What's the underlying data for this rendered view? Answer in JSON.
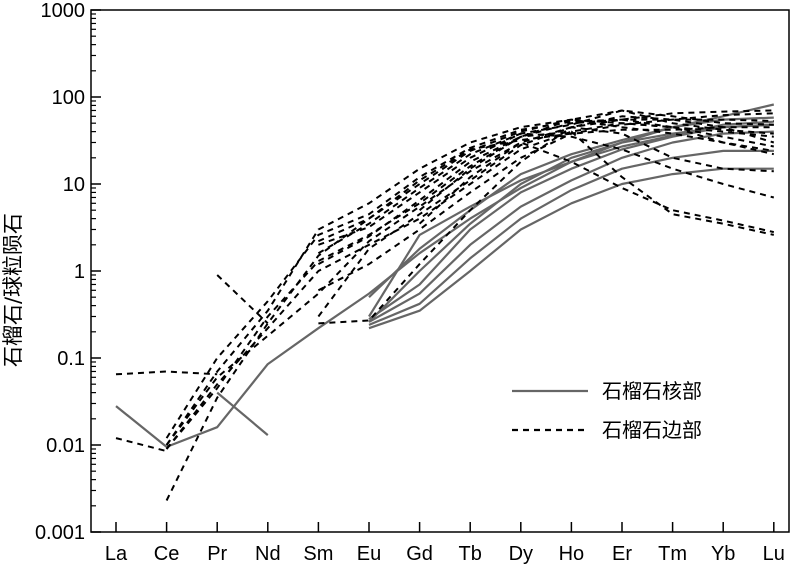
{
  "chart_data": {
    "type": "line",
    "title": "",
    "xlabel": "",
    "ylabel": "石榴石/球粒陨石",
    "categories": [
      "La",
      "Ce",
      "Pr",
      "Nd",
      "Sm",
      "Eu",
      "Gd",
      "Tb",
      "Dy",
      "Ho",
      "Er",
      "Tm",
      "Yb",
      "Lu"
    ],
    "y_scale": "log",
    "ylim": [
      0.001,
      1000
    ],
    "y_ticks": [
      "0.001",
      "0.01",
      "0.1",
      "1",
      "10",
      "100",
      "1000"
    ],
    "grid": false,
    "legend": {
      "placement": "right",
      "items": [
        {
          "label": "石榴石核部",
          "style": "solid",
          "color": "#666666"
        },
        {
          "label": "石榴石边部",
          "style": "dashed",
          "color": "#000000"
        }
      ]
    },
    "series_groups": [
      {
        "legend": "石榴石核部",
        "style": "solid",
        "color": "#666666",
        "lines": [
          [
            0.028,
            0.0095,
            0.016,
            0.085,
            0.22,
            0.55,
            1.6,
            4.0,
            9.0,
            18,
            30,
            45,
            55,
            58
          ],
          [
            null,
            null,
            0.04,
            0.013,
            null,
            null,
            null,
            null,
            null,
            null,
            null,
            null,
            null,
            null
          ],
          [
            null,
            null,
            null,
            null,
            null,
            0.22,
            0.35,
            1.0,
            3.0,
            6.0,
            10,
            13,
            15,
            15
          ],
          [
            null,
            null,
            null,
            null,
            null,
            0.24,
            0.42,
            1.4,
            4.0,
            8.5,
            15,
            20,
            24,
            24
          ],
          [
            null,
            null,
            null,
            null,
            null,
            0.26,
            0.55,
            2.0,
            5.5,
            11,
            20,
            30,
            38,
            40
          ],
          [
            null,
            null,
            null,
            null,
            null,
            0.28,
            0.7,
            3.0,
            8.0,
            15,
            25,
            35,
            45,
            48
          ],
          [
            null,
            null,
            null,
            null,
            null,
            0.3,
            2.6,
            5.5,
            11,
            18,
            27,
            36,
            48,
            52
          ],
          [
            null,
            null,
            null,
            null,
            null,
            0.5,
            1.8,
            5.0,
            13,
            22,
            32,
            45,
            60,
            82
          ],
          [
            null,
            null,
            null,
            null,
            null,
            0.26,
            1.0,
            3.5,
            10,
            20,
            30,
            38,
            45,
            48
          ]
        ]
      },
      {
        "legend": "石榴石边部",
        "style": "dashed",
        "color": "#000000",
        "lines": [
          [
            0.065,
            0.07,
            0.065,
            null,
            null,
            null,
            null,
            null,
            null,
            null,
            null,
            null,
            null,
            null
          ],
          [
            0.012,
            0.0085,
            null,
            null,
            null,
            null,
            null,
            null,
            null,
            null,
            null,
            null,
            null,
            null
          ],
          [
            null,
            null,
            0.9,
            0.25,
            null,
            null,
            null,
            null,
            null,
            null,
            null,
            null,
            null,
            null
          ],
          [
            null,
            0.0023,
            0.035,
            0.25,
            1.5,
            4.0,
            10,
            24,
            40,
            55,
            50,
            45,
            35,
            27
          ],
          [
            null,
            0.009,
            0.045,
            0.3,
            1.3,
            2.6,
            6,
            16,
            35,
            50,
            55,
            45,
            30,
            22
          ],
          [
            null,
            0.01,
            0.06,
            0.18,
            0.55,
            2.2,
            5.5,
            14,
            30,
            45,
            60,
            55,
            45,
            30
          ],
          [
            null,
            0.009,
            0.05,
            0.22,
            1.0,
            2.0,
            4.0,
            10,
            25,
            40,
            50,
            45,
            40,
            35
          ],
          [
            null,
            0.01,
            0.07,
            0.35,
            3.0,
            6.0,
            15,
            30,
            45,
            55,
            45,
            38,
            30,
            24
          ],
          [
            null,
            0.012,
            0.1,
            0.45,
            2.6,
            4.5,
            12,
            26,
            42,
            52,
            55,
            55,
            55,
            53
          ],
          [
            null,
            null,
            null,
            null,
            0.6,
            1.2,
            3.0,
            8.0,
            20,
            38,
            48,
            55,
            62,
            65
          ],
          [
            null,
            null,
            null,
            null,
            0.3,
            1.8,
            4.5,
            11,
            28,
            45,
            55,
            65,
            68,
            70
          ],
          [
            null,
            null,
            null,
            null,
            2.0,
            3.2,
            8.0,
            20,
            38,
            48,
            70,
            60,
            50,
            48
          ],
          [
            null,
            null,
            null,
            null,
            1.2,
            2.5,
            6.5,
            18,
            35,
            55,
            70,
            50,
            42,
            38
          ],
          [
            null,
            null,
            null,
            null,
            0.25,
            0.27,
            1.2,
            5.0,
            18,
            45,
            38,
            20,
            15,
            14
          ],
          [
            null,
            null,
            null,
            null,
            null,
            null,
            3.5,
            12,
            30,
            18,
            9,
            5.0,
            3.8,
            2.8
          ],
          [
            null,
            null,
            null,
            null,
            null,
            null,
            5.0,
            15,
            35,
            40,
            12,
            4.5,
            3.5,
            2.6
          ],
          [
            null,
            null,
            null,
            null,
            1.6,
            3.5,
            9.0,
            22,
            38,
            35,
            25,
            15,
            10,
            7.0
          ],
          [
            null,
            null,
            null,
            null,
            2.2,
            4.0,
            11,
            25,
            32,
            38,
            42,
            42,
            45,
            45
          ]
        ]
      }
    ]
  }
}
